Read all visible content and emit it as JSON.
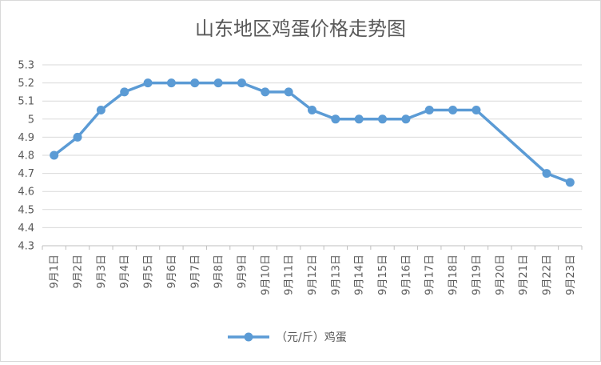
{
  "chart_data": {
    "type": "line",
    "title": "山东地区鸡蛋价格走势图",
    "xlabel": "",
    "ylabel": "",
    "categories": [
      "9月1日",
      "9月2日",
      "9月3日",
      "9月4日",
      "9月5日",
      "9月6日",
      "9月7日",
      "9月8日",
      "9月9日",
      "9月10日",
      "9月11日",
      "9月12日",
      "9月13日",
      "9月14日",
      "9月15日",
      "9月16日",
      "9月17日",
      "9月18日",
      "9月19日",
      "9月20日",
      "9月21日",
      "9月22日",
      "9月23日"
    ],
    "series": [
      {
        "name": "（元/斤）鸡蛋",
        "color": "#5b9bd5",
        "values": [
          4.8,
          4.9,
          5.05,
          5.15,
          5.2,
          5.2,
          5.2,
          5.2,
          5.2,
          5.15,
          5.15,
          5.05,
          5.0,
          5.0,
          5.0,
          5.0,
          5.05,
          5.05,
          5.05,
          null,
          null,
          4.7,
          4.65
        ]
      }
    ],
    "ylim": [
      4.3,
      5.3
    ],
    "yticks": [
      "4.3",
      "4.4",
      "4.5",
      "4.6",
      "4.7",
      "4.8",
      "4.9",
      "5",
      "5.1",
      "5.2",
      "5.3"
    ],
    "grid": true,
    "legend_position": "bottom",
    "connect_gaps": true
  }
}
